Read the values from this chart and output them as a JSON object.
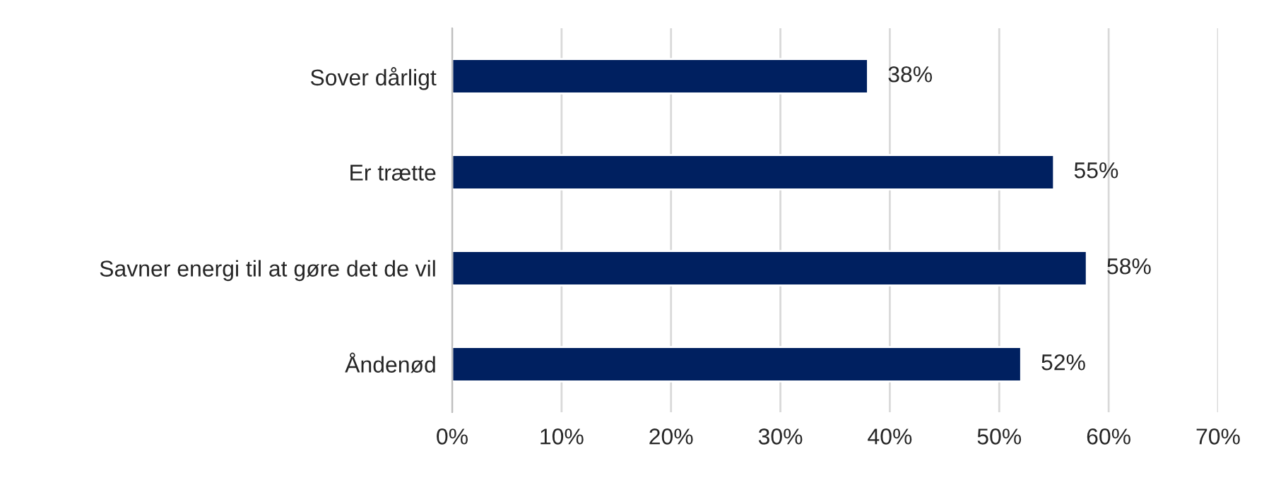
{
  "chart_data": {
    "type": "bar",
    "orientation": "horizontal",
    "categories": [
      "Sover dårligt",
      "Er trætte",
      "Savner energi til at gøre det de vil",
      "Åndenød"
    ],
    "values": [
      38,
      55,
      58,
      52
    ],
    "value_labels": [
      "38%",
      "55%",
      "58%",
      "52%"
    ],
    "color": "#002060",
    "xlim": [
      0,
      70
    ],
    "xticks": [
      {
        "value": 0,
        "label": "0%"
      },
      {
        "value": 10,
        "label": "10%"
      },
      {
        "value": 20,
        "label": "20%"
      },
      {
        "value": 30,
        "label": "30%"
      },
      {
        "value": 40,
        "label": "40%"
      },
      {
        "value": 50,
        "label": "50%"
      },
      {
        "value": 60,
        "label": "60%"
      },
      {
        "value": 70,
        "label": "70%"
      }
    ],
    "grid": "x",
    "legend": false
  }
}
